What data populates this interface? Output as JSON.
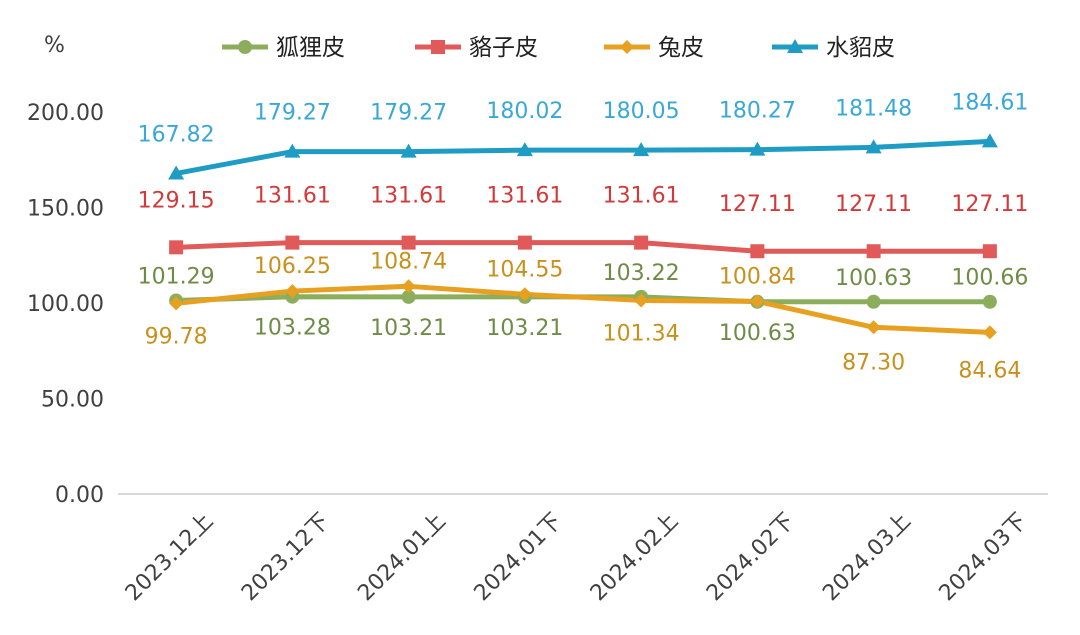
{
  "chart_data": {
    "type": "line",
    "title": "",
    "ylabel": "%",
    "xlabel": "",
    "ylim": [
      0,
      200
    ],
    "yticks": [
      "0.00",
      "50.00",
      "100.00",
      "150.00",
      "200.00"
    ],
    "grid": false,
    "legend_position": "top",
    "categories": [
      "2023.12上",
      "2023.12下",
      "2024.01上",
      "2024.01下",
      "2024.02上",
      "2024.02下",
      "2024.03上",
      "2024.03下"
    ],
    "series": [
      {
        "name": "狐狸皮",
        "color": "#8cae5c",
        "marker": "circle",
        "values": [
          101.29,
          103.28,
          103.21,
          103.21,
          103.22,
          100.63,
          100.63,
          100.66
        ],
        "labels": [
          "101.29",
          "103.28",
          "103.21",
          "103.21",
          "103.22",
          "100.63",
          "100.63",
          "100.66"
        ]
      },
      {
        "name": "貉子皮",
        "color": "#e05a5a",
        "marker": "square",
        "values": [
          129.15,
          131.61,
          131.61,
          131.61,
          131.61,
          127.11,
          127.11,
          127.11
        ],
        "labels": [
          "129.15",
          "131.61",
          "131.61",
          "131.61",
          "131.61",
          "127.11",
          "127.11",
          "127.11"
        ]
      },
      {
        "name": "兔皮",
        "color": "#e8a020",
        "marker": "diamond",
        "values": [
          99.78,
          106.25,
          108.74,
          104.55,
          101.34,
          100.84,
          87.3,
          84.64
        ],
        "labels": [
          "99.78",
          "106.25",
          "108.74",
          "104.55",
          "101.34",
          "100.84",
          "87.30",
          "84.64"
        ]
      },
      {
        "name": "水貂皮",
        "color": "#1f9cc3",
        "marker": "triangle",
        "values": [
          167.82,
          179.27,
          179.27,
          180.02,
          180.05,
          180.27,
          181.48,
          184.61
        ],
        "labels": [
          "167.82",
          "179.27",
          "179.27",
          "180.02",
          "180.05",
          "180.27",
          "181.48",
          "184.61"
        ]
      }
    ],
    "label_colors": {
      "狐狸皮": "#6e8c46",
      "貉子皮": "#d23a3a",
      "兔皮": "#c8901c",
      "水貂皮": "#3aa8d6"
    }
  }
}
